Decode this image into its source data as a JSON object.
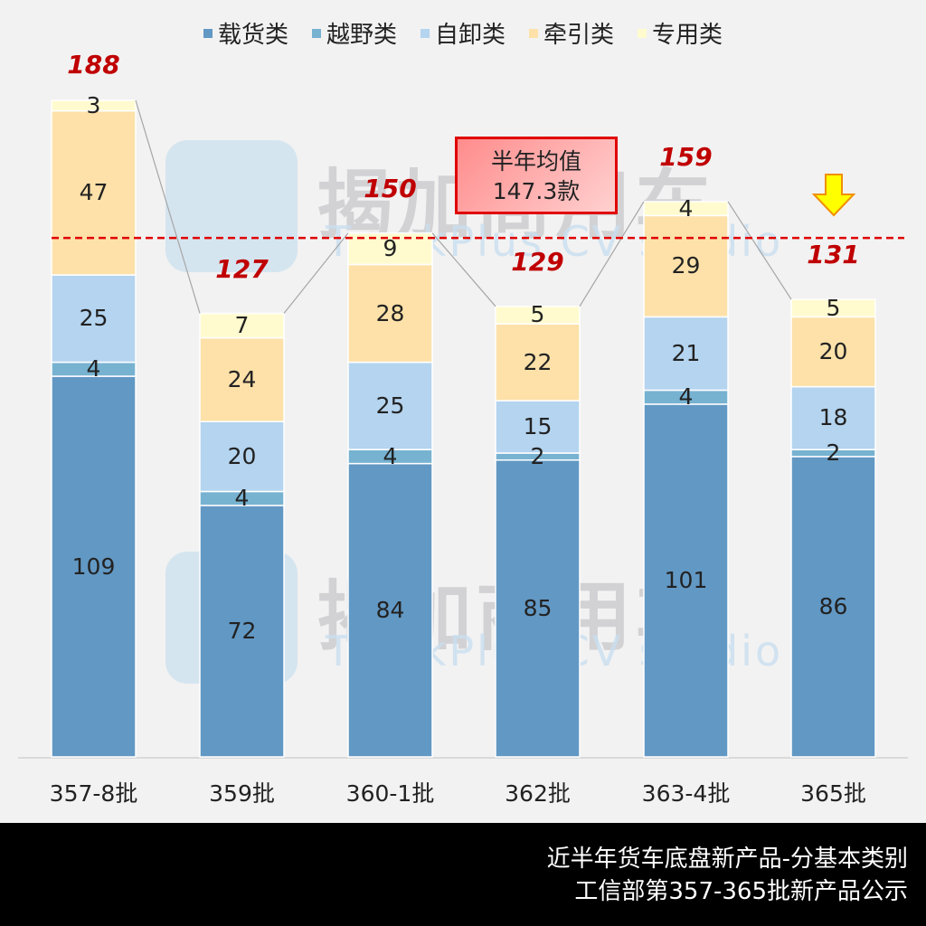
{
  "legend": [
    {
      "label": "载货类",
      "color": "#6298c4"
    },
    {
      "label": "越野类",
      "color": "#77b2d1"
    },
    {
      "label": "自卸类",
      "color": "#b4d4ef"
    },
    {
      "label": "牵引类",
      "color": "#fde1a9"
    },
    {
      "label": "专用类",
      "color": "#fffbcf"
    }
  ],
  "average": {
    "line1": "半年均值",
    "line2": "147.3款",
    "value": 147.3,
    "line_color": "#e00000"
  },
  "footer": {
    "line1": "近半年货车底盘新产品-分基本类别",
    "line2": "工信部第357-365批新产品公示"
  },
  "watermark": {
    "brand": "揭加商用车",
    "sub": "TruckPlus CV studio"
  },
  "chart_data": {
    "type": "bar",
    "stacked": true,
    "title": "近半年货车底盘新产品-分基本类别",
    "subtitle": "工信部第357-365批新产品公示",
    "xlabel": "",
    "ylabel": "",
    "categories": [
      "357-8批",
      "359批",
      "360-1批",
      "362批",
      "363-4批",
      "365批"
    ],
    "series": [
      {
        "name": "载货类",
        "values": [
          109,
          72,
          84,
          85,
          101,
          86
        ]
      },
      {
        "name": "越野类",
        "values": [
          4,
          4,
          4,
          2,
          4,
          2
        ]
      },
      {
        "name": "自卸类",
        "values": [
          25,
          20,
          25,
          15,
          21,
          18
        ]
      },
      {
        "name": "牵引类",
        "values": [
          47,
          24,
          28,
          22,
          29,
          20
        ]
      },
      {
        "name": "专用类",
        "values": [
          3,
          7,
          9,
          5,
          4,
          5
        ]
      }
    ],
    "totals": [
      188,
      127,
      150,
      129,
      159,
      131
    ],
    "reference_line": {
      "label": "半年均值 147.3款",
      "value": 147.3,
      "style": "dashed"
    },
    "annotations": [
      "半年均值 147.3款",
      "down-arrow over 365批"
    ],
    "legend_position": "top",
    "grid": false,
    "ylim": [
      0,
      188
    ]
  }
}
